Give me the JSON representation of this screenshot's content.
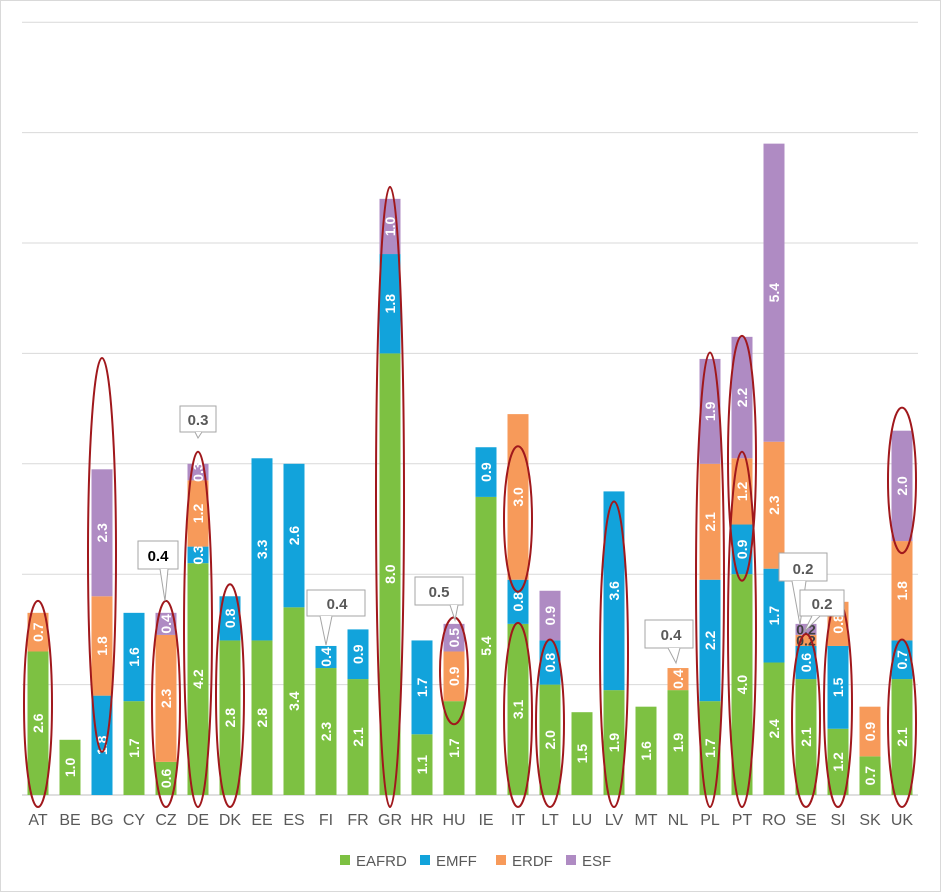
{
  "chart_data": {
    "type": "bar",
    "stacked": true,
    "categories": [
      "AT",
      "BE",
      "BG",
      "CY",
      "CZ",
      "DE",
      "DK",
      "EE",
      "ES",
      "FI",
      "FR",
      "GR",
      "HR",
      "HU",
      "IE",
      "IT",
      "LT",
      "LU",
      "LV",
      "MT",
      "NL",
      "PL",
      "PT",
      "RO",
      "SE",
      "SI",
      "SK",
      "UK"
    ],
    "series": [
      {
        "name": "EAFRD",
        "color": "#7DC142",
        "values": [
          2.6,
          1.0,
          null,
          1.7,
          0.6,
          4.2,
          2.8,
          2.8,
          3.4,
          2.3,
          2.1,
          8.0,
          1.1,
          1.7,
          5.4,
          3.1,
          2.0,
          1.5,
          1.9,
          1.6,
          1.9,
          1.7,
          4.0,
          2.4,
          2.1,
          1.2,
          0.7,
          2.1
        ],
        "labels": [
          "2.6",
          "1.0",
          "",
          "1.7",
          "0.6",
          "4.2",
          "2.8",
          "2.8",
          "3.4",
          "2.3",
          "2.1",
          "8.0",
          "1.1",
          "1.7",
          "5.4",
          "3.1",
          "2.0",
          "1.5",
          "1.9",
          "1.6",
          "1.9",
          "1.7",
          "4.0",
          "2.4",
          "2.1",
          "1.2",
          "0.7",
          "2.1"
        ]
      },
      {
        "name": "EMFF",
        "color": "#12A3DB",
        "values": [
          null,
          null,
          1.8,
          1.6,
          null,
          0.3,
          0.8,
          3.3,
          2.6,
          0.4,
          0.9,
          1.8,
          1.7,
          null,
          0.9,
          0.8,
          0.8,
          null,
          3.6,
          null,
          null,
          2.2,
          0.9,
          1.7,
          0.6,
          1.5,
          null,
          0.7
        ],
        "labels": [
          "",
          "",
          "1.8",
          "1.6",
          "",
          "0.3",
          "0.8",
          "3.3",
          "2.6",
          "0.4",
          "0.9",
          "1.8",
          "1.7",
          "",
          "0.9",
          "0.8",
          "0.8",
          "",
          "3.6",
          "",
          "",
          "2.2",
          "0.9",
          "1.7",
          "0.6",
          "1.5",
          "",
          "0.7"
        ]
      },
      {
        "name": "ERDF",
        "color": "#F79A5A",
        "values": [
          0.7,
          null,
          1.8,
          null,
          2.3,
          1.2,
          null,
          null,
          null,
          null,
          null,
          null,
          null,
          0.9,
          null,
          3.0,
          null,
          null,
          null,
          null,
          0.4,
          2.1,
          1.2,
          2.3,
          0.2,
          0.8,
          0.9,
          1.8
        ],
        "labels": [
          "0.7",
          "",
          "1.8",
          "",
          "2.3",
          "1.2",
          "",
          "",
          "",
          "",
          "",
          "",
          "",
          "0.9",
          "",
          "3.0",
          "",
          "",
          "",
          "",
          "0.4",
          "2.1",
          "1.2",
          "2.3",
          "0.2",
          "0.8",
          "0.9",
          "1.8"
        ]
      },
      {
        "name": "ESF",
        "color": "#AF8BC3",
        "values": [
          null,
          null,
          2.3,
          null,
          0.4,
          0.3,
          null,
          null,
          null,
          null,
          null,
          1.0,
          null,
          0.5,
          null,
          null,
          0.9,
          null,
          null,
          null,
          null,
          1.9,
          2.2,
          5.4,
          0.2,
          null,
          null,
          2.0
        ],
        "labels": [
          "",
          "",
          "2.3",
          "",
          "0.4",
          "0.3",
          "",
          "",
          "",
          "",
          "",
          "1.0",
          "",
          "0.5",
          "",
          "",
          "0.9",
          "",
          "",
          "",
          "",
          "1.9",
          "2.2",
          "5.4",
          "0.2",
          "",
          "",
          "2.0"
        ]
      }
    ],
    "callouts": [
      "0.4",
      "0.3",
      "0.4",
      "0.5",
      "0.4",
      "0.2",
      "0.2"
    ],
    "ylim": [
      0,
      14
    ],
    "grid": true,
    "legend_position": "bottom"
  }
}
